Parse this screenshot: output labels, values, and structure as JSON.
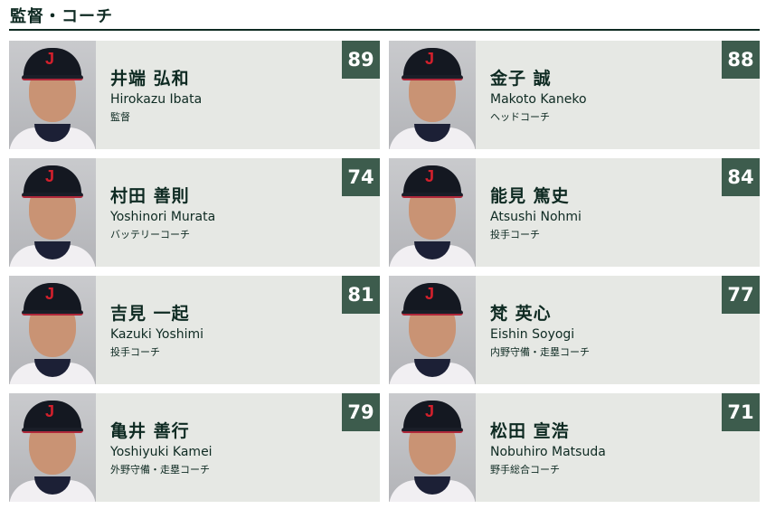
{
  "section_title": "監督・コーチ",
  "colors": {
    "card_bg": "#e6e8e4",
    "badge_bg": "#3d5c4d",
    "text": "#0e2a22"
  },
  "staff": [
    {
      "number": "89",
      "name_jp": "井端 弘和",
      "name_en": "Hirokazu Ibata",
      "role": "監督"
    },
    {
      "number": "88",
      "name_jp": "金子 誠",
      "name_en": "Makoto Kaneko",
      "role": "ヘッドコーチ"
    },
    {
      "number": "74",
      "name_jp": "村田 善則",
      "name_en": "Yoshinori Murata",
      "role": "バッテリーコーチ"
    },
    {
      "number": "84",
      "name_jp": "能見 篤史",
      "name_en": "Atsushi Nohmi",
      "role": "投手コーチ"
    },
    {
      "number": "81",
      "name_jp": "吉見 一起",
      "name_en": "Kazuki Yoshimi",
      "role": "投手コーチ"
    },
    {
      "number": "77",
      "name_jp": "梵 英心",
      "name_en": "Eishin Soyogi",
      "role": "内野守備・走塁コーチ"
    },
    {
      "number": "79",
      "name_jp": "亀井 善行",
      "name_en": "Yoshiyuki Kamei",
      "role": "外野守備・走塁コーチ"
    },
    {
      "number": "71",
      "name_jp": "松田 宣浩",
      "name_en": "Nobuhiro Matsuda",
      "role": "野手総合コーチ"
    }
  ]
}
